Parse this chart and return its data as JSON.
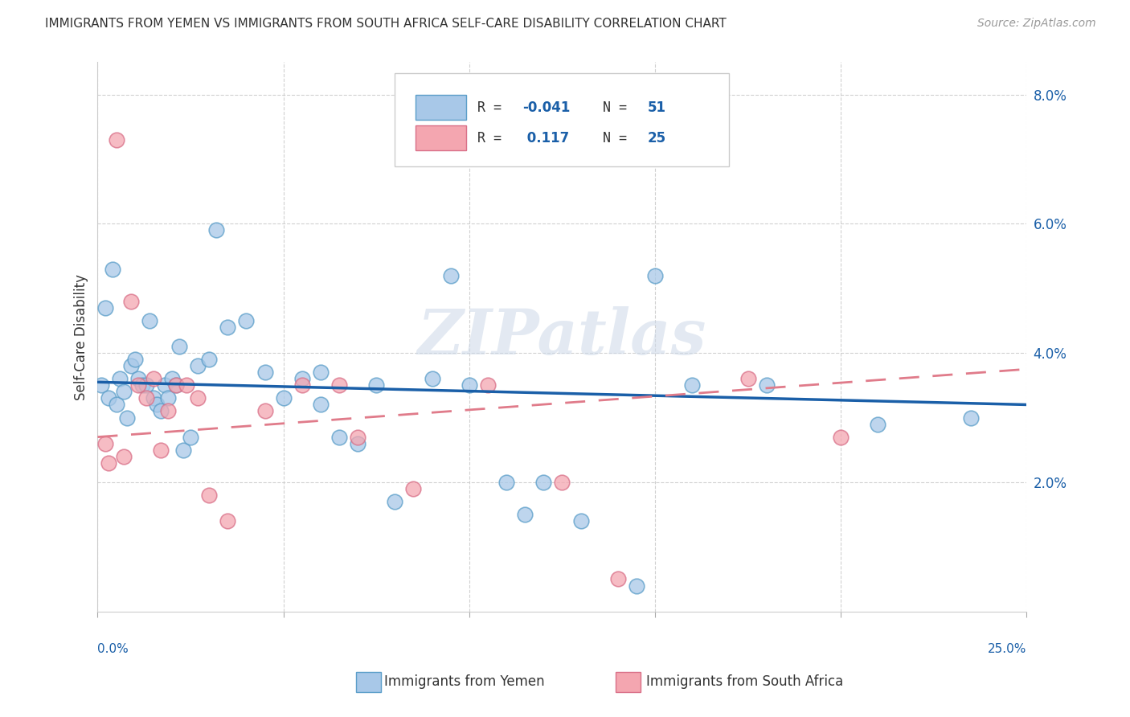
{
  "title": "IMMIGRANTS FROM YEMEN VS IMMIGRANTS FROM SOUTH AFRICA SELF-CARE DISABILITY CORRELATION CHART",
  "source": "Source: ZipAtlas.com",
  "ylabel": "Self-Care Disability",
  "xmin": 0.0,
  "xmax": 25.0,
  "ymin": 0.0,
  "ymax": 8.5,
  "ytick_vals": [
    2.0,
    4.0,
    6.0,
    8.0
  ],
  "ytick_labels": [
    "2.0%",
    "4.0%",
    "6.0%",
    "8.0%"
  ],
  "xtick_vals": [
    0.0,
    5.0,
    10.0,
    15.0,
    20.0,
    25.0
  ],
  "series_yemen": {
    "label": "Immigrants from Yemen",
    "color_fill": "#a8c8e8",
    "color_edge": "#5b9ec9",
    "R": -0.041,
    "N": 51,
    "x": [
      0.1,
      0.2,
      0.3,
      0.4,
      0.5,
      0.6,
      0.7,
      0.8,
      0.9,
      1.0,
      1.1,
      1.2,
      1.3,
      1.4,
      1.5,
      1.6,
      1.7,
      1.8,
      1.9,
      2.0,
      2.1,
      2.2,
      2.3,
      2.5,
      2.7,
      3.0,
      3.2,
      3.5,
      4.0,
      4.5,
      5.0,
      5.5,
      6.0,
      6.0,
      6.5,
      7.0,
      7.5,
      8.0,
      9.0,
      9.5,
      10.0,
      11.0,
      11.5,
      12.0,
      13.0,
      14.5,
      15.0,
      16.0,
      18.0,
      21.0,
      23.5
    ],
    "y": [
      3.5,
      4.7,
      3.3,
      5.3,
      3.2,
      3.6,
      3.4,
      3.0,
      3.8,
      3.9,
      3.6,
      3.5,
      3.5,
      4.5,
      3.3,
      3.2,
      3.1,
      3.5,
      3.3,
      3.6,
      3.5,
      4.1,
      2.5,
      2.7,
      3.8,
      3.9,
      5.9,
      4.4,
      4.5,
      3.7,
      3.3,
      3.6,
      3.7,
      3.2,
      2.7,
      2.6,
      3.5,
      1.7,
      3.6,
      5.2,
      3.5,
      2.0,
      1.5,
      2.0,
      1.4,
      0.4,
      5.2,
      3.5,
      3.5,
      2.9,
      3.0
    ],
    "trend_x": [
      0.0,
      25.0
    ],
    "trend_y": [
      3.55,
      3.2
    ],
    "line_color": "#1a5fa8",
    "line_style": "solid",
    "line_width": 2.5
  },
  "series_sa": {
    "label": "Immigrants from South Africa",
    "color_fill": "#f4a6b0",
    "color_edge": "#d97088",
    "R": 0.117,
    "N": 25,
    "x": [
      0.2,
      0.3,
      0.5,
      0.7,
      0.9,
      1.1,
      1.3,
      1.5,
      1.7,
      1.9,
      2.1,
      2.4,
      2.7,
      3.0,
      3.5,
      4.5,
      5.5,
      6.5,
      7.0,
      8.5,
      10.5,
      12.5,
      14.0,
      17.5,
      20.0
    ],
    "y": [
      2.6,
      2.3,
      7.3,
      2.4,
      4.8,
      3.5,
      3.3,
      3.6,
      2.5,
      3.1,
      3.5,
      3.5,
      3.3,
      1.8,
      1.4,
      3.1,
      3.5,
      3.5,
      2.7,
      1.9,
      3.5,
      2.0,
      0.5,
      3.6,
      2.7
    ],
    "trend_x": [
      0.0,
      25.0
    ],
    "trend_y": [
      2.7,
      3.75
    ],
    "line_color": "#e07b8a",
    "line_style": "dashed",
    "line_width": 2.0
  },
  "legend_box": {
    "yemen_patch_color": "#a8c8e8",
    "yemen_patch_edge": "#5b9ec9",
    "sa_patch_color": "#f4a6b0",
    "sa_patch_edge": "#d97088",
    "text_color_label": "#333333",
    "text_color_value": "#1a5fa8"
  },
  "watermark": "ZIPatlas",
  "bg_color": "#ffffff",
  "grid_color": "#cccccc"
}
